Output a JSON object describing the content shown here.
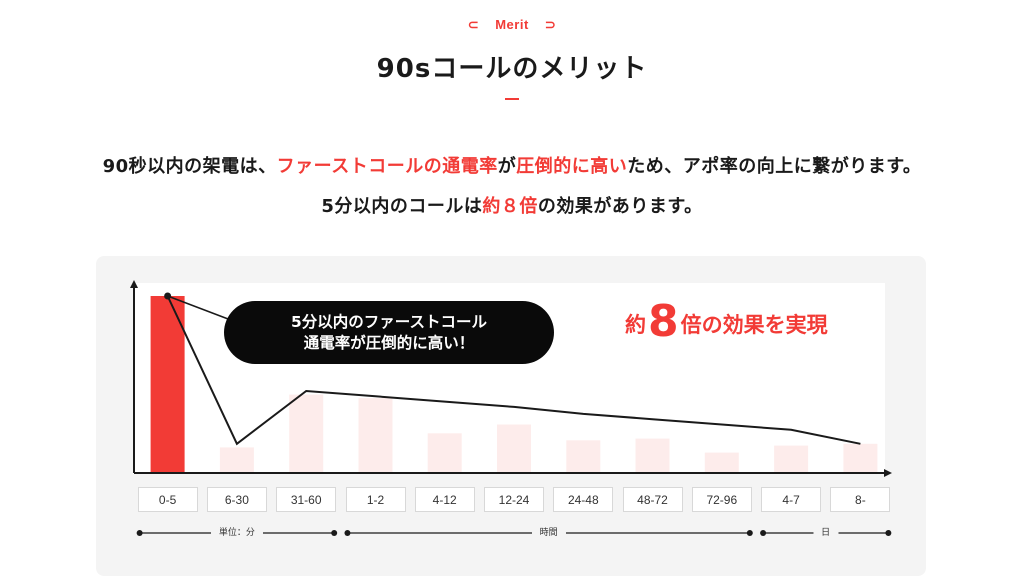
{
  "header": {
    "eyebrow": "Merit",
    "eyebrow_left": "⊂",
    "eyebrow_right": "⊃",
    "title": "90sコールのメリット"
  },
  "lead": {
    "line1_a": "90秒以内の架電は、",
    "line1_b": "ファーストコールの通電率",
    "line1_c": "が",
    "line1_d": "圧倒的に高い",
    "line1_e": "ため、アポ率の向上に繋がります。",
    "line2_a": "5分以内のコールは",
    "line2_b": "約８倍",
    "line2_c": "の効果があります。"
  },
  "callout": {
    "line1": "5分以内のファーストコール",
    "line2": "通電率が圧倒的に高い！"
  },
  "effect": {
    "prefix": "約",
    "number": "8",
    "suffix": "倍の効果を実現"
  },
  "colors": {
    "accent": "#f23b36",
    "bar_faint": "#fdeceb",
    "panel": "#f4f4f4",
    "axis": "#1a1a1a"
  },
  "chart_data": {
    "type": "bar",
    "categories": [
      "0-5",
      "6-30",
      "31-60",
      "1-2",
      "4-12",
      "12-24",
      "24-48",
      "48-72",
      "72-96",
      "4-7",
      "8-"
    ],
    "values": [
      100,
      14,
      44,
      42,
      22,
      27,
      18,
      19,
      11,
      15,
      16
    ],
    "line_values": [
      100,
      16,
      46,
      43,
      40,
      37,
      33,
      30,
      27,
      24,
      16
    ],
    "highlight_index": 0,
    "ylim": [
      0,
      105
    ],
    "units": [
      {
        "label": "単位：分",
        "from": 0,
        "to": 2
      },
      {
        "label": "時間",
        "from": 3,
        "to": 8
      },
      {
        "label": "日",
        "from": 9,
        "to": 10
      }
    ]
  }
}
